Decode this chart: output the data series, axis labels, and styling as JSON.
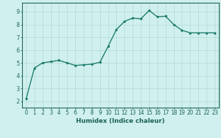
{
  "x": [
    0,
    1,
    2,
    3,
    4,
    5,
    6,
    7,
    8,
    9,
    10,
    11,
    12,
    13,
    14,
    15,
    16,
    17,
    18,
    19,
    20,
    21,
    22,
    23
  ],
  "y": [
    2.2,
    4.6,
    5.0,
    5.1,
    5.2,
    5.0,
    4.8,
    4.85,
    4.9,
    5.05,
    6.3,
    7.6,
    8.25,
    8.5,
    8.45,
    9.1,
    8.6,
    8.65,
    8.0,
    7.55,
    7.35,
    7.35,
    7.35,
    7.35
  ],
  "line_color": "#1a7a6a",
  "marker": "o",
  "marker_size": 2.0,
  "bg_color": "#cff0ee",
  "grid_color": "#b0d8d4",
  "xlabel": "Humidex (Indice chaleur)",
  "xlim": [
    -0.5,
    23.5
  ],
  "ylim": [
    1.5,
    9.7
  ],
  "yticks": [
    2,
    3,
    4,
    5,
    6,
    7,
    8,
    9
  ],
  "xticks": [
    0,
    1,
    2,
    3,
    4,
    5,
    6,
    7,
    8,
    9,
    10,
    11,
    12,
    13,
    14,
    15,
    16,
    17,
    18,
    19,
    20,
    21,
    22,
    23
  ],
  "tick_color": "#1a6055",
  "label_fontsize": 5.5,
  "xlabel_fontsize": 6.5,
  "axis_color": "#1a6055",
  "linewidth": 1.0
}
